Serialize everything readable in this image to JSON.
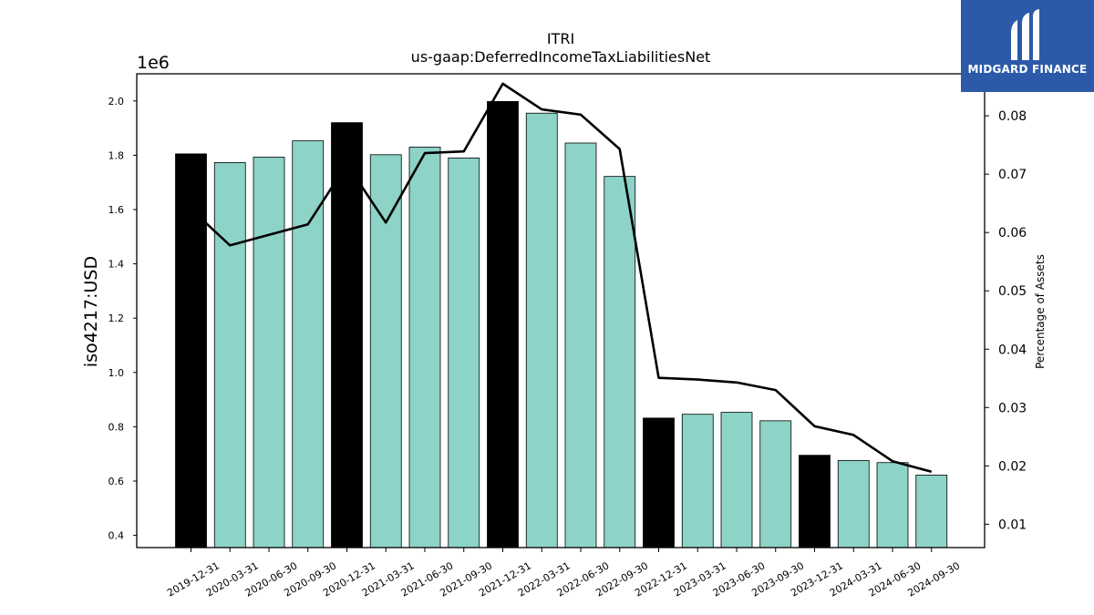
{
  "chart_data": {
    "type": "bar",
    "title": "ITRI",
    "subtitle": "us-gaap:DeferredIncomeTaxLiabilitiesNet",
    "ylabel": "iso4217:USD",
    "y_offset_label": "1e6",
    "y2label": "Percentage of Assets",
    "ylim": [
      0.355,
      2.1
    ],
    "y2lim": [
      0.006,
      0.0872
    ],
    "yticks": [
      "0.4",
      "0.6",
      "0.8",
      "1.0",
      "1.2",
      "1.4",
      "1.6",
      "1.8",
      "2.0"
    ],
    "y2ticks": [
      "0.01",
      "0.02",
      "0.03",
      "0.04",
      "0.05",
      "0.06",
      "0.07",
      "0.08"
    ],
    "categories": [
      "2019-12-31",
      "2020-03-31",
      "2020-06-30",
      "2020-09-30",
      "2020-12-31",
      "2021-03-31",
      "2021-06-30",
      "2021-09-30",
      "2021-12-31",
      "2022-03-31",
      "2022-06-30",
      "2022-09-30",
      "2022-12-31",
      "2023-03-31",
      "2023-06-30",
      "2023-09-30",
      "2023-12-31",
      "2024-03-31",
      "2024-06-30",
      "2024-09-30"
    ],
    "series": [
      {
        "kind": "bar",
        "values": [
          1.805,
          1.773,
          1.793,
          1.853,
          1.92,
          1.802,
          1.83,
          1.79,
          1.998,
          1.955,
          1.845,
          1.722,
          0.832,
          0.846,
          0.853,
          0.822,
          0.695,
          0.676,
          0.668,
          0.622
        ],
        "colors": [
          "#000000",
          "#8dd3c7",
          "#8dd3c7",
          "#8dd3c7",
          "#000000",
          "#8dd3c7",
          "#8dd3c7",
          "#8dd3c7",
          "#000000",
          "#8dd3c7",
          "#8dd3c7",
          "#8dd3c7",
          "#000000",
          "#8dd3c7",
          "#8dd3c7",
          "#8dd3c7",
          "#000000",
          "#8dd3c7",
          "#8dd3c7",
          "#8dd3c7"
        ]
      },
      {
        "kind": "line",
        "axis": "y2",
        "color": "#000000",
        "values": [
          0.064,
          0.0578,
          0.0596,
          0.0614,
          0.0717,
          0.0617,
          0.0736,
          0.0739,
          0.0855,
          0.0811,
          0.0802,
          0.0743,
          0.0351,
          0.0348,
          0.0343,
          0.033,
          0.0268,
          0.0253,
          0.0208,
          0.019
        ]
      }
    ],
    "grid": false
  },
  "logo": {
    "text": "MIDGARD FINANCE",
    "background": "#2c5aa8"
  }
}
